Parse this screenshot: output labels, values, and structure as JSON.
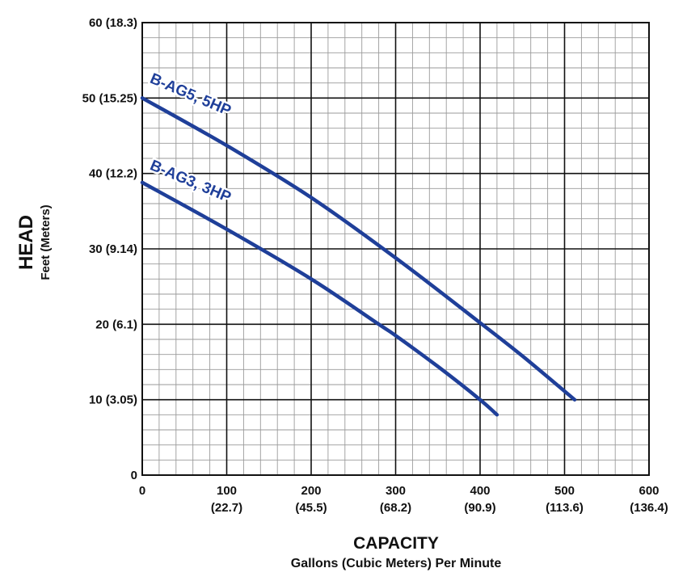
{
  "chart_data": {
    "type": "line",
    "ylabel": "HEAD",
    "ylabel_sub": "Feet (Meters)",
    "xlabel": "CAPACITY",
    "xlabel_sub": "Gallons (Cubic Meters) Per Minute",
    "xlim": [
      0,
      600
    ],
    "ylim": [
      0,
      60
    ],
    "grid": true,
    "x_ticks": [
      {
        "value": 0,
        "label": "0",
        "sub": ""
      },
      {
        "value": 100,
        "label": "100",
        "sub": "(22.7)"
      },
      {
        "value": 200,
        "label": "200",
        "sub": "(45.5)"
      },
      {
        "value": 300,
        "label": "300",
        "sub": "(68.2)"
      },
      {
        "value": 400,
        "label": "400",
        "sub": "(90.9)"
      },
      {
        "value": 500,
        "label": "500",
        "sub": "(113.6)"
      },
      {
        "value": 600,
        "label": "600",
        "sub": "(136.4)"
      }
    ],
    "y_ticks": [
      {
        "value": 0,
        "label": "0"
      },
      {
        "value": 10,
        "label": "10 (3.05)"
      },
      {
        "value": 20,
        "label": "20 (6.1)"
      },
      {
        "value": 30,
        "label": "30 (9.14)"
      },
      {
        "value": 40,
        "label": "40 (12.2)"
      },
      {
        "value": 50,
        "label": "50 (15.25)"
      },
      {
        "value": 60,
        "label": "60 (18.3)"
      }
    ],
    "series": [
      {
        "name": "B-AG5, 5HP",
        "color": "#1f3f99",
        "points": [
          [
            0,
            50
          ],
          [
            100,
            43.7
          ],
          [
            200,
            36.8
          ],
          [
            300,
            28.8
          ],
          [
            400,
            20.2
          ],
          [
            450,
            15.8
          ],
          [
            512,
            10
          ]
        ]
      },
      {
        "name": "B-AG3, 3HP",
        "color": "#1f3f99",
        "points": [
          [
            0,
            38.8
          ],
          [
            100,
            32.6
          ],
          [
            200,
            26
          ],
          [
            280,
            20
          ],
          [
            300,
            18.5
          ],
          [
            350,
            14.4
          ],
          [
            400,
            10
          ],
          [
            420,
            8
          ]
        ]
      }
    ]
  }
}
